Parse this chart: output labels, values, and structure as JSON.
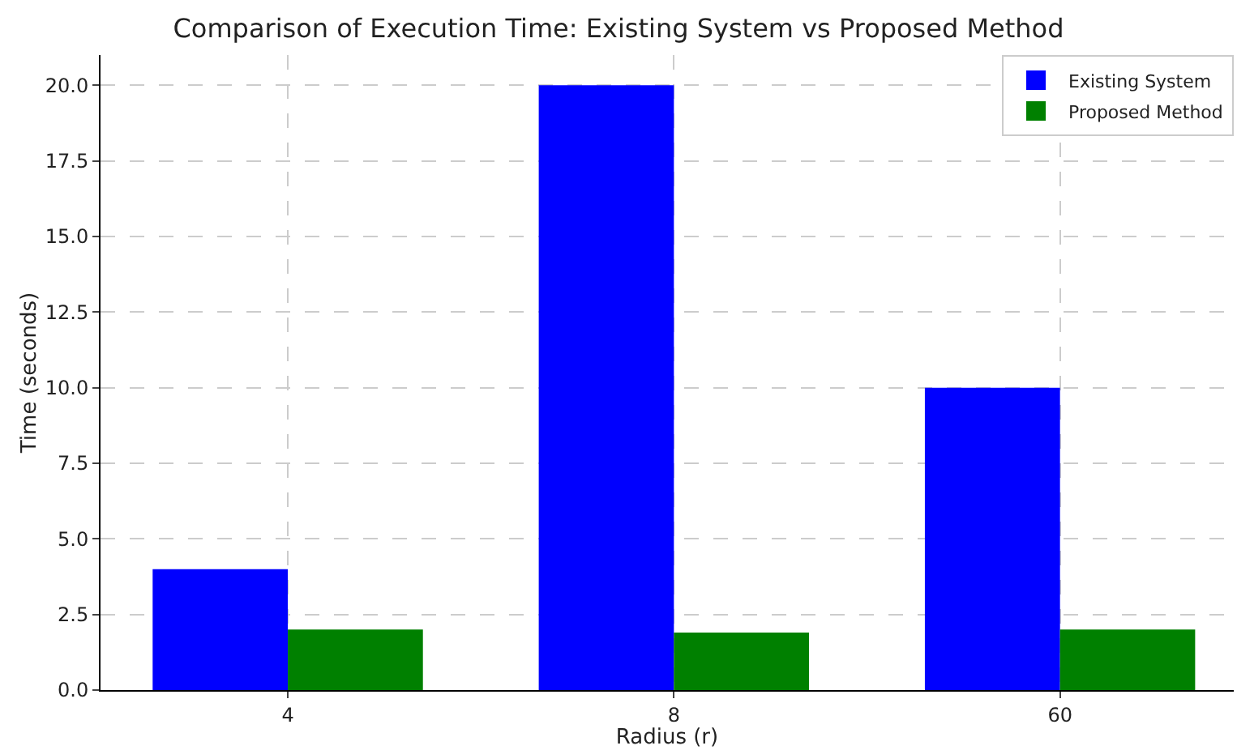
{
  "chart_data": {
    "type": "bar",
    "title": "Comparison of Execution Time: Existing System vs Proposed Method",
    "xlabel": "Radius (r)",
    "ylabel": "Time (seconds)",
    "categories": [
      "4",
      "8",
      "60"
    ],
    "series": [
      {
        "name": "Existing System",
        "color": "#0000ff",
        "values": [
          4.0,
          20.0,
          10.0
        ]
      },
      {
        "name": "Proposed Method",
        "color": "#008000",
        "values": [
          2.0,
          1.9,
          2.0
        ]
      }
    ],
    "ylim": [
      0,
      21
    ],
    "yticks": [
      {
        "value": 0,
        "label": "0.0"
      },
      {
        "value": 2.5,
        "label": "2.5"
      },
      {
        "value": 5,
        "label": "5.0"
      },
      {
        "value": 7.5,
        "label": "7.5"
      },
      {
        "value": 10,
        "label": "10.0"
      },
      {
        "value": 12.5,
        "label": "12.5"
      },
      {
        "value": 15,
        "label": "15.0"
      },
      {
        "value": 17.5,
        "label": "17.5"
      },
      {
        "value": 20,
        "label": "20.0"
      }
    ],
    "grid": true,
    "legend": "top right"
  }
}
